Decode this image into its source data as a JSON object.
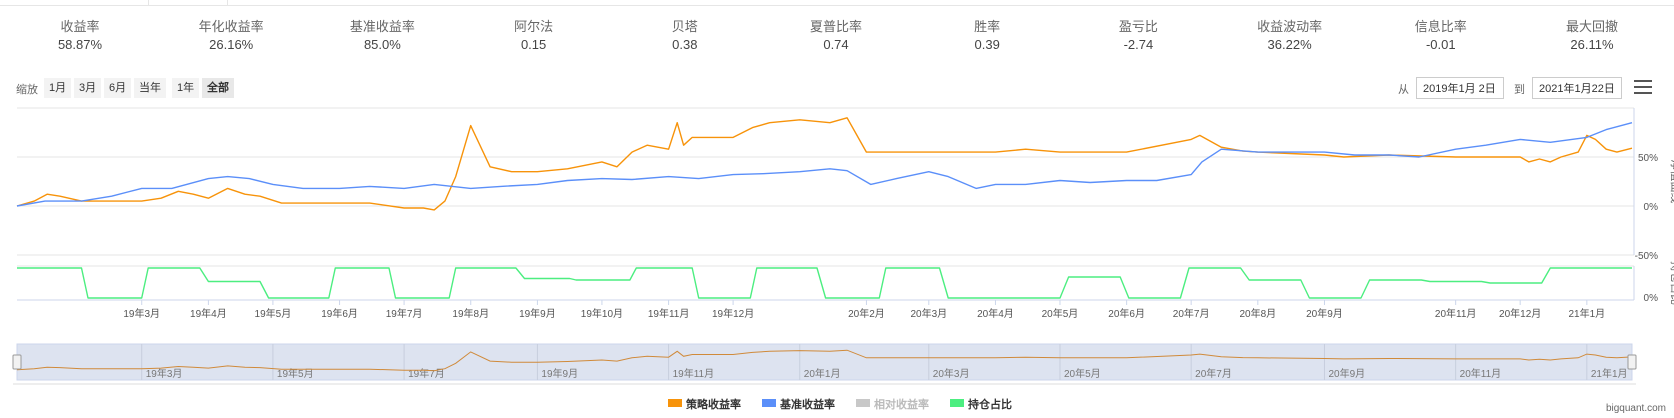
{
  "metrics": [
    {
      "label": "收益率",
      "value": "58.87%"
    },
    {
      "label": "年化收益率",
      "value": "26.16%"
    },
    {
      "label": "基准收益率",
      "value": "85.0%"
    },
    {
      "label": "阿尔法",
      "value": "0.15"
    },
    {
      "label": "贝塔",
      "value": "0.38"
    },
    {
      "label": "夏普比率",
      "value": "0.74"
    },
    {
      "label": "胜率",
      "value": "0.39"
    },
    {
      "label": "盈亏比",
      "value": "-2.74"
    },
    {
      "label": "收益波动率",
      "value": "36.22%"
    },
    {
      "label": "信息比率",
      "value": "-0.01"
    },
    {
      "label": "最大回撤",
      "value": "26.11%"
    }
  ],
  "zoom": {
    "label": "缩放",
    "buttons": [
      "1月",
      "3月",
      "6月",
      "当年",
      "1年",
      "全部"
    ],
    "active": "全部"
  },
  "range": {
    "from_label": "从",
    "from_value": "2019年1月 2日",
    "to_label": "到",
    "to_value": "2021年1月22日"
  },
  "menu_icon": "hamburger-menu-icon",
  "credit": "bigquant.com",
  "colors": {
    "strategy": "#f7930a",
    "benchmark": "#5b8ff9",
    "relative": "#c8c8c8",
    "position": "#4cee80"
  },
  "chart_data": {
    "type": "line",
    "x_range": [
      "2019-01-02",
      "2021-01-22"
    ],
    "main_panel": {
      "ylabel": "净值曲线",
      "ytick_labels": [
        "50%",
        "0%",
        "-50%"
      ],
      "yticks": [
        50,
        0,
        -50
      ],
      "ylim": [
        -50,
        100
      ],
      "grid": true
    },
    "position_panel": {
      "ylabel": "持仓占比",
      "ytick_labels": [
        "0%"
      ],
      "ylim": [
        0,
        100
      ]
    },
    "xtick_labels": [
      "19年3月",
      "19年4月",
      "19年5月",
      "19年6月",
      "19年7月",
      "19年8月",
      "19年9月",
      "19年10月",
      "19年11月",
      "19年12月",
      "20年2月",
      "20年3月",
      "20年4月",
      "20年5月",
      "20年6月",
      "20年7月",
      "20年8月",
      "20年9月",
      "20年11月",
      "20年12月",
      "21年1月"
    ],
    "xtick_dates": [
      "2019-03-01",
      "2019-04-01",
      "2019-05-01",
      "2019-06-01",
      "2019-07-01",
      "2019-08-01",
      "2019-09-01",
      "2019-10-01",
      "2019-11-01",
      "2019-12-01",
      "2020-02-01",
      "2020-03-01",
      "2020-04-01",
      "2020-05-01",
      "2020-06-01",
      "2020-07-01",
      "2020-08-01",
      "2020-09-01",
      "2020-11-01",
      "2020-12-01",
      "2021-01-01"
    ],
    "navigator_labels": [
      "19年3月",
      "19年5月",
      "19年7月",
      "19年9月",
      "19年11月",
      "20年1月",
      "20年3月",
      "20年5月",
      "20年7月",
      "20年9月",
      "20年11月",
      "21年1月"
    ],
    "navigator_dates": [
      "2019-03-01",
      "2019-05-01",
      "2019-07-01",
      "2019-09-01",
      "2019-11-01",
      "2020-01-01",
      "2020-03-01",
      "2020-05-01",
      "2020-07-01",
      "2020-09-01",
      "2020-11-01",
      "2021-01-01"
    ],
    "legend": [
      "策略收益率",
      "基准收益率",
      "相对收益率",
      "持仓占比"
    ],
    "series": [
      {
        "name": "策略收益率",
        "x": [
          "2019-01-02",
          "2019-01-10",
          "2019-01-16",
          "2019-01-22",
          "2019-02-01",
          "2019-02-15",
          "2019-03-01",
          "2019-03-10",
          "2019-03-18",
          "2019-03-25",
          "2019-04-01",
          "2019-04-10",
          "2019-04-18",
          "2019-04-25",
          "2019-05-05",
          "2019-05-15",
          "2019-06-01",
          "2019-06-15",
          "2019-07-01",
          "2019-07-10",
          "2019-07-15",
          "2019-07-20",
          "2019-07-25",
          "2019-08-01",
          "2019-08-10",
          "2019-08-20",
          "2019-09-01",
          "2019-09-15",
          "2019-10-01",
          "2019-10-08",
          "2019-10-15",
          "2019-10-22",
          "2019-11-01",
          "2019-11-05",
          "2019-11-08",
          "2019-11-12",
          "2019-12-01",
          "2019-12-10",
          "2019-12-18",
          "2020-01-01",
          "2020-01-15",
          "2020-01-23",
          "2020-02-01",
          "2020-03-01",
          "2020-04-01",
          "2020-04-15",
          "2020-05-01",
          "2020-06-01",
          "2020-07-01",
          "2020-07-05",
          "2020-07-15",
          "2020-07-25",
          "2020-08-01",
          "2020-09-01",
          "2020-09-10",
          "2020-10-01",
          "2020-11-01",
          "2020-12-01",
          "2020-12-05",
          "2020-12-10",
          "2020-12-15",
          "2020-12-20",
          "2020-12-28",
          "2021-01-01",
          "2021-01-05",
          "2021-01-10",
          "2021-01-15",
          "2021-01-22"
        ],
        "y": [
          0,
          5,
          12,
          10,
          5,
          5,
          5,
          8,
          15,
          12,
          8,
          18,
          12,
          10,
          3,
          3,
          3,
          3,
          -2,
          -2,
          -4,
          5,
          30,
          82,
          40,
          35,
          35,
          38,
          45,
          40,
          55,
          62,
          58,
          85,
          62,
          70,
          70,
          80,
          85,
          88,
          85,
          90,
          55,
          55,
          55,
          58,
          55,
          55,
          68,
          72,
          60,
          56,
          55,
          52,
          50,
          52,
          50,
          50,
          45,
          48,
          45,
          50,
          55,
          72,
          68,
          58,
          55,
          59
        ]
      },
      {
        "name": "基准收益率",
        "x": [
          "2019-01-02",
          "2019-01-15",
          "2019-02-01",
          "2019-02-15",
          "2019-03-01",
          "2019-03-15",
          "2019-04-01",
          "2019-04-10",
          "2019-04-20",
          "2019-05-01",
          "2019-05-15",
          "2019-06-01",
          "2019-06-15",
          "2019-07-01",
          "2019-07-15",
          "2019-08-01",
          "2019-08-15",
          "2019-09-01",
          "2019-09-15",
          "2019-10-01",
          "2019-10-15",
          "2019-11-01",
          "2019-11-15",
          "2019-12-01",
          "2019-12-15",
          "2020-01-01",
          "2020-01-15",
          "2020-01-23",
          "2020-02-03",
          "2020-02-15",
          "2020-03-01",
          "2020-03-10",
          "2020-03-23",
          "2020-04-01",
          "2020-04-15",
          "2020-05-01",
          "2020-05-15",
          "2020-06-01",
          "2020-06-15",
          "2020-07-01",
          "2020-07-06",
          "2020-07-15",
          "2020-08-01",
          "2020-08-15",
          "2020-09-01",
          "2020-09-15",
          "2020-10-01",
          "2020-10-15",
          "2020-11-01",
          "2020-11-15",
          "2020-12-01",
          "2020-12-15",
          "2021-01-01",
          "2021-01-10",
          "2021-01-22"
        ],
        "y": [
          0,
          5,
          5,
          10,
          18,
          18,
          28,
          30,
          28,
          22,
          18,
          18,
          20,
          18,
          22,
          18,
          20,
          22,
          26,
          28,
          27,
          30,
          28,
          32,
          33,
          35,
          38,
          36,
          22,
          28,
          35,
          30,
          18,
          22,
          22,
          26,
          24,
          26,
          26,
          32,
          45,
          58,
          55,
          55,
          55,
          52,
          52,
          50,
          58,
          62,
          68,
          65,
          70,
          78,
          85
        ]
      },
      {
        "name": "持仓占比",
        "x": [
          "2019-01-02",
          "2019-02-01",
          "2019-02-04",
          "2019-03-01",
          "2019-03-04",
          "2019-03-28",
          "2019-04-01",
          "2019-04-25",
          "2019-04-29",
          "2019-05-27",
          "2019-05-30",
          "2019-06-24",
          "2019-06-27",
          "2019-07-22",
          "2019-07-25",
          "2019-08-22",
          "2019-08-26",
          "2019-09-16",
          "2019-09-19",
          "2019-10-14",
          "2019-10-17",
          "2019-11-12",
          "2019-11-15",
          "2019-12-09",
          "2019-12-12",
          "2020-01-09",
          "2020-01-13",
          "2020-02-07",
          "2020-02-10",
          "2020-03-06",
          "2020-03-10",
          "2020-04-03",
          "2020-04-07",
          "2020-05-01",
          "2020-05-05",
          "2020-05-29",
          "2020-06-02",
          "2020-06-26",
          "2020-06-30",
          "2020-07-24",
          "2020-07-28",
          "2020-08-21",
          "2020-08-25",
          "2020-09-18",
          "2020-09-22",
          "2020-10-16",
          "2020-10-20",
          "2020-11-13",
          "2020-11-17",
          "2020-12-11",
          "2020-12-15",
          "2021-01-08",
          "2021-01-12",
          "2021-01-22"
        ],
        "y": [
          100,
          100,
          0,
          0,
          100,
          100,
          55,
          55,
          0,
          0,
          100,
          100,
          0,
          0,
          100,
          100,
          65,
          65,
          60,
          60,
          100,
          100,
          0,
          0,
          100,
          100,
          0,
          0,
          100,
          100,
          0,
          0,
          0,
          0,
          70,
          70,
          0,
          0,
          100,
          100,
          60,
          60,
          0,
          0,
          60,
          60,
          55,
          55,
          50,
          50,
          100,
          100,
          100,
          100
        ]
      }
    ]
  }
}
